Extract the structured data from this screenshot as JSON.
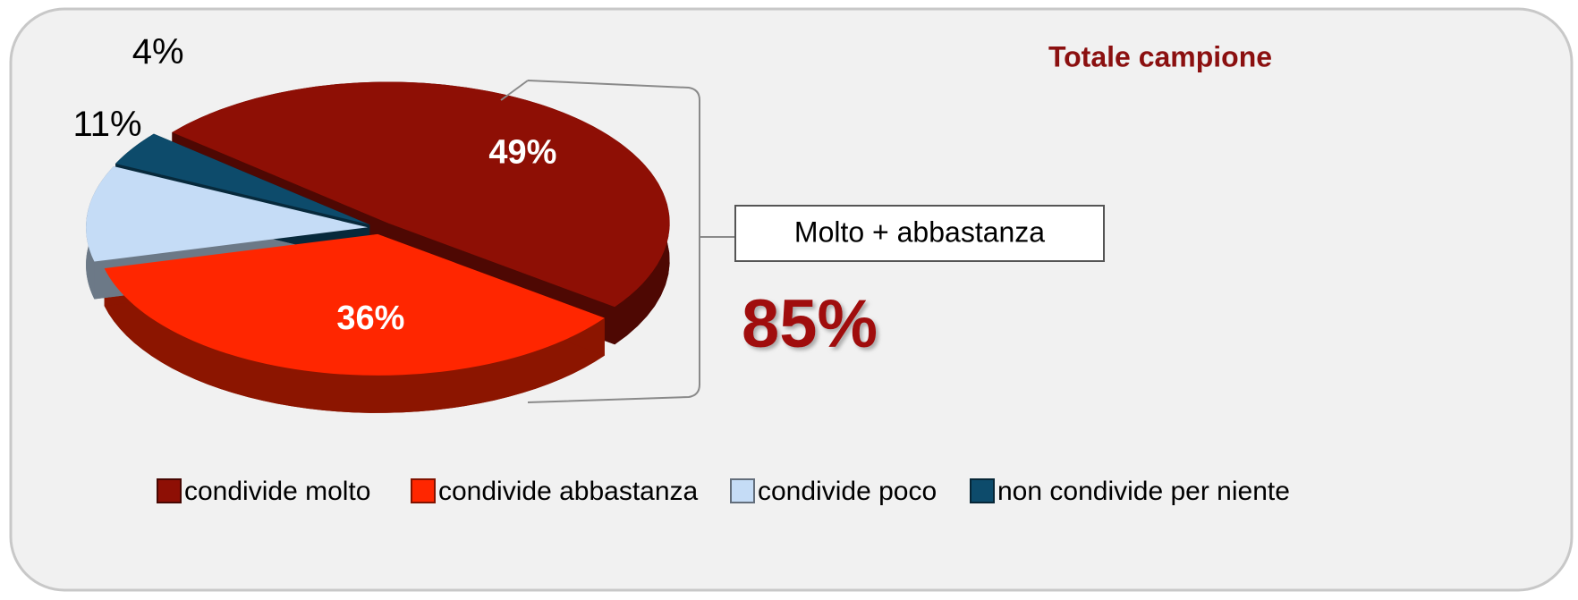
{
  "chart_data": {
    "type": "pie",
    "title": "Totale campione",
    "categories": [
      "condivide molto",
      "condivide abbastanza",
      "condivide poco",
      "non condivide per niente"
    ],
    "values": [
      49,
      36,
      11,
      4
    ],
    "value_labels": [
      "49%",
      "36%",
      "11%",
      "4%"
    ],
    "colors": [
      "#8e0f05",
      "#ff2600",
      "#c5dcf6",
      "#0d4b6b"
    ],
    "annotations": [
      "Molto + abbastanza",
      "85%"
    ]
  }
}
